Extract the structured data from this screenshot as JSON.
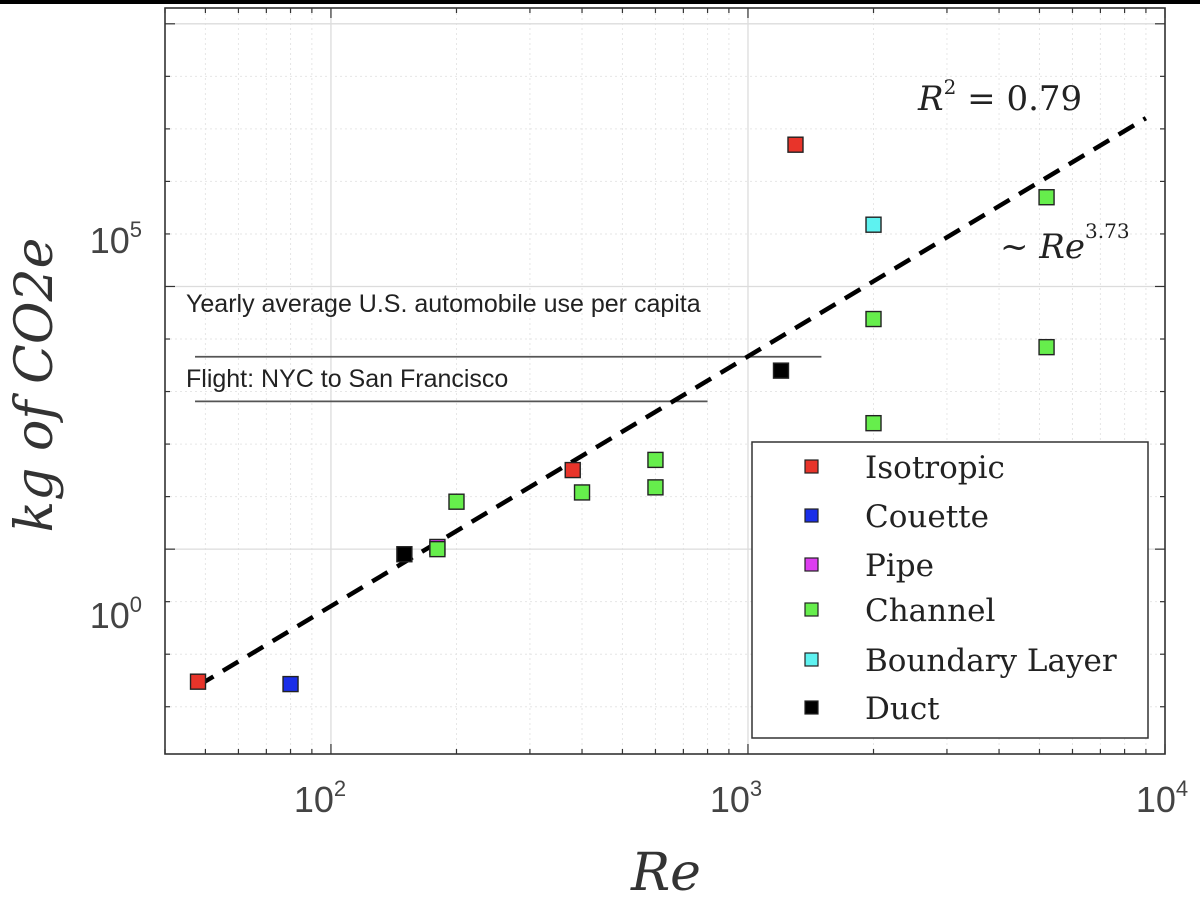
{
  "chart_data": {
    "type": "scatter",
    "x_scale": "log",
    "y_scale": "log",
    "xlim": [
      40,
      10000
    ],
    "ylim": [
      0.000126,
      20000000000.0
    ],
    "xlabel": "Re",
    "ylabel": "kg of CO2e",
    "x_ticks": [
      {
        "base": "10",
        "exp": "2",
        "value": 100
      },
      {
        "base": "10",
        "exp": "3",
        "value": 1000
      },
      {
        "base": "10",
        "exp": "4",
        "value": 10000
      }
    ],
    "y_ticks": [
      {
        "base": "10",
        "exp": "0",
        "value": 1
      },
      {
        "base": "10",
        "exp": "5",
        "value": 100000
      }
    ],
    "fit": {
      "label_r2_lhs": "R",
      "label_r2_exp": "2",
      "label_r2_rhs": " = 0.79",
      "label_power_prefix": "~ ",
      "label_power_base": "Re",
      "label_power_exp": "3.73",
      "x_range": [
        48,
        9000
      ],
      "y_range": [
        0.00251,
        160000000.0
      ]
    },
    "annotations": [
      {
        "text": "Yearly average U.S. automobile use per capita",
        "value": 4600,
        "x_start": 48,
        "x_end": 1500
      },
      {
        "text": "Flight:  NYC to San Francisco",
        "value": 650,
        "x_start": 48,
        "x_end": 800
      }
    ],
    "series": [
      {
        "name": "Isotropic",
        "color": "#e8342a",
        "points": [
          {
            "x": 48,
            "y": 0.003
          },
          {
            "x": 380,
            "y": 32
          },
          {
            "x": 1300,
            "y": 50000000.0
          }
        ]
      },
      {
        "name": "Couette",
        "color": "#1a2ee8",
        "points": [
          {
            "x": 80,
            "y": 0.0027
          }
        ]
      },
      {
        "name": "Pipe",
        "color": "#dd3df0",
        "points": [
          {
            "x": 180,
            "y": 1.1
          }
        ]
      },
      {
        "name": "Channel",
        "color": "#66ee4c",
        "points": [
          {
            "x": 180,
            "y": 1.0
          },
          {
            "x": 200,
            "y": 8.0
          },
          {
            "x": 400,
            "y": 12
          },
          {
            "x": 600,
            "y": 50
          },
          {
            "x": 600,
            "y": 15
          },
          {
            "x": 2000,
            "y": 24000
          },
          {
            "x": 2000,
            "y": 250
          },
          {
            "x": 5200,
            "y": 5000000.0
          },
          {
            "x": 5200,
            "y": 7000
          }
        ]
      },
      {
        "name": "Boundary Layer",
        "color": "#5ef2f0",
        "points": [
          {
            "x": 2000,
            "y": 1500000.0
          }
        ]
      },
      {
        "name": "Duct",
        "color": "#000000",
        "points": [
          {
            "x": 150,
            "y": 0.8
          },
          {
            "x": 1200,
            "y": 2500
          }
        ]
      }
    ]
  }
}
